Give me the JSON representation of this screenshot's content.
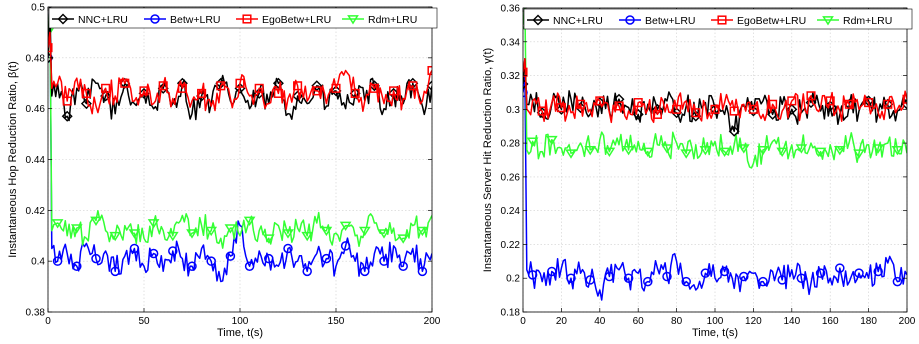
{
  "chart_data": [
    {
      "type": "line",
      "title": "",
      "xlabel": "Time, t(s)",
      "ylabel": "Instantaneous Hop Reduction Ratio, β(t)",
      "xlim": [
        0,
        200
      ],
      "ylim": [
        0.38,
        0.5
      ],
      "xticks": [
        0,
        50,
        100,
        150,
        200
      ],
      "xtick_labels": [
        "0",
        "50",
        "100",
        "150",
        "200"
      ],
      "yticks": [
        0.38,
        0.4,
        0.42,
        0.44,
        0.46,
        0.48,
        0.5
      ],
      "ytick_labels": [
        "0.38",
        "0.4",
        "0.42",
        "0.44",
        "0.46",
        "0.48",
        "0.5"
      ],
      "grid": true,
      "legend_position": "top",
      "x": [
        0,
        1,
        2,
        5,
        10,
        15,
        20,
        25,
        30,
        35,
        40,
        45,
        50,
        55,
        60,
        65,
        70,
        75,
        80,
        85,
        90,
        95,
        100,
        105,
        110,
        115,
        120,
        125,
        130,
        135,
        140,
        145,
        150,
        155,
        160,
        165,
        170,
        175,
        180,
        185,
        190,
        195,
        200
      ],
      "series": [
        {
          "name": "NNC+LRU",
          "color": "#000000",
          "marker": "diamond",
          "values": [
            0.48,
            0.5,
            0.465,
            0.47,
            0.457,
            0.468,
            0.462,
            0.47,
            0.465,
            0.458,
            0.47,
            0.462,
            0.466,
            0.46,
            0.468,
            0.462,
            0.47,
            0.458,
            0.465,
            0.462,
            0.47,
            0.463,
            0.468,
            0.46,
            0.466,
            0.462,
            0.47,
            0.458,
            0.465,
            0.462,
            0.469,
            0.461,
            0.467,
            0.46,
            0.466,
            0.463,
            0.469,
            0.46,
            0.466,
            0.462,
            0.47,
            0.461,
            0.469
          ]
        },
        {
          "name": "Betw+LRU",
          "color": "#0000ff",
          "marker": "circle",
          "values": [
            0.48,
            0.5,
            0.405,
            0.4,
            0.403,
            0.398,
            0.407,
            0.401,
            0.404,
            0.396,
            0.402,
            0.405,
            0.398,
            0.403,
            0.396,
            0.404,
            0.401,
            0.398,
            0.405,
            0.4,
            0.392,
            0.402,
            0.414,
            0.398,
            0.404,
            0.401,
            0.398,
            0.405,
            0.4,
            0.396,
            0.403,
            0.401,
            0.398,
            0.406,
            0.4,
            0.396,
            0.403,
            0.4,
            0.406,
            0.398,
            0.405,
            0.396,
            0.403
          ]
        },
        {
          "name": "EgoBetw+LRU",
          "color": "#ff0000",
          "marker": "square",
          "values": [
            0.484,
            0.49,
            0.468,
            0.47,
            0.463,
            0.472,
            0.466,
            0.461,
            0.468,
            0.465,
            0.47,
            0.463,
            0.467,
            0.462,
            0.469,
            0.464,
            0.468,
            0.463,
            0.466,
            0.461,
            0.469,
            0.464,
            0.47,
            0.465,
            0.468,
            0.462,
            0.466,
            0.464,
            0.469,
            0.463,
            0.467,
            0.462,
            0.468,
            0.475,
            0.466,
            0.463,
            0.468,
            0.462,
            0.467,
            0.464,
            0.469,
            0.463,
            0.475
          ]
        },
        {
          "name": "Rdm+LRU",
          "color": "#33ff33",
          "marker": "triangle-down",
          "values": [
            0.49,
            0.498,
            0.412,
            0.415,
            0.41,
            0.413,
            0.409,
            0.416,
            0.412,
            0.41,
            0.414,
            0.411,
            0.409,
            0.415,
            0.412,
            0.41,
            0.418,
            0.411,
            0.414,
            0.412,
            0.409,
            0.413,
            0.41,
            0.416,
            0.412,
            0.409,
            0.414,
            0.411,
            0.413,
            0.41,
            0.415,
            0.412,
            0.411,
            0.414,
            0.41,
            0.412,
            0.415,
            0.411,
            0.413,
            0.409,
            0.414,
            0.412,
            0.418
          ]
        }
      ]
    },
    {
      "type": "line",
      "title": "",
      "xlabel": "Time, t(s)",
      "ylabel": "Instantaneous Server Hit Reduction Ratio, γ(t)",
      "xlim": [
        0,
        200
      ],
      "ylim": [
        0.18,
        0.36
      ],
      "xticks": [
        0,
        20,
        40,
        60,
        80,
        100,
        120,
        140,
        160,
        180,
        200
      ],
      "xtick_labels": [
        "0",
        "20",
        "40",
        "60",
        "80",
        "100",
        "120",
        "140",
        "160",
        "180",
        "200"
      ],
      "yticks": [
        0.18,
        0.2,
        0.22,
        0.24,
        0.26,
        0.28,
        0.3,
        0.32,
        0.34,
        0.36
      ],
      "ytick_labels": [
        "0.18",
        "0.2",
        "0.22",
        "0.24",
        "0.26",
        "0.28",
        "0.3",
        "0.32",
        "0.34",
        "0.36"
      ],
      "grid": true,
      "legend_position": "top",
      "x": [
        0,
        1,
        2,
        5,
        10,
        15,
        20,
        25,
        30,
        35,
        40,
        45,
        50,
        55,
        60,
        65,
        70,
        75,
        80,
        85,
        90,
        95,
        100,
        105,
        110,
        115,
        120,
        125,
        130,
        135,
        140,
        145,
        150,
        155,
        160,
        165,
        170,
        175,
        180,
        185,
        190,
        195,
        200
      ],
      "series": [
        {
          "name": "NNC+LRU",
          "color": "#000000",
          "marker": "diamond",
          "values": [
            0.315,
            0.33,
            0.303,
            0.305,
            0.298,
            0.303,
            0.3,
            0.306,
            0.301,
            0.297,
            0.304,
            0.299,
            0.306,
            0.301,
            0.297,
            0.303,
            0.3,
            0.305,
            0.298,
            0.302,
            0.296,
            0.304,
            0.3,
            0.297,
            0.287,
            0.302,
            0.299,
            0.305,
            0.297,
            0.303,
            0.3,
            0.298,
            0.304,
            0.299,
            0.302,
            0.297,
            0.303,
            0.299,
            0.305,
            0.298,
            0.303,
            0.299,
            0.303
          ]
        },
        {
          "name": "Betw+LRU",
          "color": "#0000ff",
          "marker": "circle",
          "values": [
            0.31,
            0.32,
            0.205,
            0.202,
            0.198,
            0.204,
            0.206,
            0.2,
            0.203,
            0.199,
            0.193,
            0.201,
            0.205,
            0.2,
            0.203,
            0.198,
            0.206,
            0.201,
            0.21,
            0.198,
            0.193,
            0.203,
            0.2,
            0.204,
            0.194,
            0.201,
            0.203,
            0.198,
            0.204,
            0.199,
            0.205,
            0.2,
            0.197,
            0.203,
            0.2,
            0.206,
            0.198,
            0.203,
            0.2,
            0.204,
            0.209,
            0.198,
            0.202
          ]
        },
        {
          "name": "EgoBetw+LRU",
          "color": "#ff0000",
          "marker": "square",
          "values": [
            0.322,
            0.33,
            0.3,
            0.305,
            0.299,
            0.304,
            0.301,
            0.298,
            0.303,
            0.3,
            0.305,
            0.298,
            0.302,
            0.299,
            0.304,
            0.3,
            0.297,
            0.303,
            0.3,
            0.305,
            0.298,
            0.302,
            0.3,
            0.304,
            0.299,
            0.303,
            0.3,
            0.297,
            0.303,
            0.299,
            0.305,
            0.3,
            0.308,
            0.301,
            0.305,
            0.299,
            0.303,
            0.3,
            0.304,
            0.298,
            0.303,
            0.3,
            0.306
          ]
        },
        {
          "name": "Rdm+LRU",
          "color": "#33ff33",
          "marker": "triangle-down",
          "values": [
            0.35,
            0.36,
            0.276,
            0.281,
            0.275,
            0.282,
            0.277,
            0.274,
            0.28,
            0.276,
            0.282,
            0.275,
            0.279,
            0.276,
            0.281,
            0.275,
            0.279,
            0.277,
            0.28,
            0.274,
            0.279,
            0.276,
            0.281,
            0.275,
            0.279,
            0.277,
            0.268,
            0.276,
            0.281,
            0.275,
            0.279,
            0.277,
            0.28,
            0.275,
            0.279,
            0.276,
            0.281,
            0.274,
            0.279,
            0.277,
            0.28,
            0.276,
            0.274
          ]
        }
      ]
    }
  ]
}
